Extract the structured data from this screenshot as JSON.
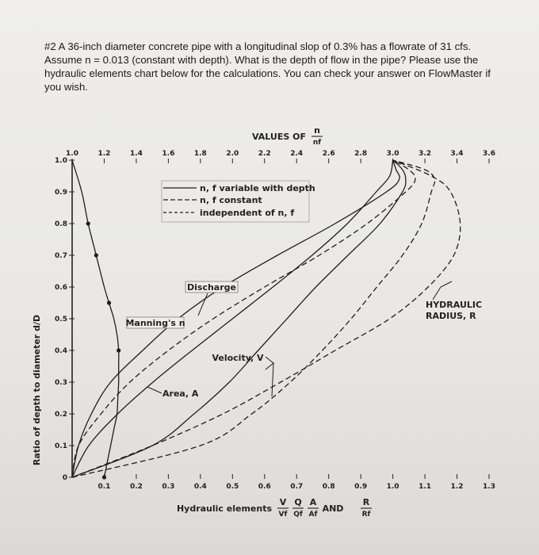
{
  "question": {
    "lines": [
      "#2 A 36-inch diameter concrete pipe with a longitudinal slop of 0.3% has a flowrate of 31 cfs.",
      "Assume n = 0.013 (constant with depth). What is the depth of flow in the pipe? Please use the",
      "hydraulic elements chart below for the calculations. You can check your answer on FlowMaster if",
      "you wish."
    ]
  },
  "chart_data": {
    "type": "line",
    "top_axis": {
      "title": "VALUES OF",
      "title_fraction": {
        "num": "n",
        "den": "nf"
      },
      "ticks": [
        "1.0",
        "1.2",
        "1.4",
        "1.6",
        "1.8",
        "2.0",
        "2.2",
        "2.4",
        "2.6",
        "2.8",
        "3.0",
        "3.2",
        "3.4",
        "3.6"
      ],
      "range": [
        1.0,
        3.6
      ]
    },
    "bottom_axis": {
      "title": "Hydraulic elements",
      "title_fractions": [
        {
          "num": "V",
          "den": "Vf"
        },
        {
          "num": "Q",
          "den": "Qf"
        },
        {
          "num": "A",
          "den": "Af"
        },
        {
          "num": "R",
          "den": "Rf"
        }
      ],
      "title_and": "AND",
      "ticks": [
        "0.1",
        "0.2",
        "0.3",
        "0.4",
        "0.5",
        "0.6",
        "0.7",
        "0.8",
        "0.9",
        "1.0",
        "1.1",
        "1.2",
        "1.3"
      ],
      "range": [
        0,
        1.3
      ]
    },
    "y_axis": {
      "title": "Ratio of depth to diameter d/D",
      "ticks": [
        "0",
        "0.1",
        "0.2",
        "0.3",
        "0.4",
        "0.5",
        "0.6",
        "0.7",
        "0.8",
        "0.9",
        "1.0"
      ],
      "range": [
        0,
        1.0
      ]
    },
    "legend": {
      "position": "top-center",
      "items": [
        {
          "style": "solid",
          "label": "n, f variable with depth"
        },
        {
          "style": "dashed",
          "label": "n, f constant"
        },
        {
          "style": "dashed",
          "label": "independent of n, f"
        }
      ]
    },
    "labels": {
      "discharge": "Discharge",
      "mannings": "Manning's n",
      "velocity": "Velocity, V",
      "area": "Area, A",
      "hydraulic_radius": [
        "HYDRAULIC",
        "RADIUS, R"
      ]
    },
    "series": [
      {
        "name": "Manning's n",
        "axis": "top",
        "style": "solid",
        "points": [
          [
            1.2,
            0.0
          ],
          [
            1.22,
            0.05
          ],
          [
            1.24,
            0.1
          ],
          [
            1.26,
            0.15
          ],
          [
            1.28,
            0.2
          ],
          [
            1.285,
            0.25
          ],
          [
            1.29,
            0.3
          ],
          [
            1.29,
            0.35
          ],
          [
            1.29,
            0.4
          ],
          [
            1.28,
            0.45
          ],
          [
            1.26,
            0.5
          ],
          [
            1.23,
            0.55
          ],
          [
            1.2,
            0.6
          ],
          [
            1.15,
            0.7
          ],
          [
            1.1,
            0.8
          ],
          [
            1.06,
            0.9
          ],
          [
            1.0,
            1.0
          ]
        ]
      },
      {
        "name": "Area, A",
        "axis": "bottom",
        "style": "solid",
        "points": [
          [
            0,
            0
          ],
          [
            0.052,
            0.1
          ],
          [
            0.142,
            0.2
          ],
          [
            0.252,
            0.3
          ],
          [
            0.374,
            0.4
          ],
          [
            0.5,
            0.5
          ],
          [
            0.626,
            0.6
          ],
          [
            0.748,
            0.7
          ],
          [
            0.858,
            0.8
          ],
          [
            0.948,
            0.9
          ],
          [
            0.99,
            0.95
          ],
          [
            1.0,
            1.0
          ]
        ]
      },
      {
        "name": "Velocity, V (n, f variable)",
        "axis": "bottom",
        "style": "solid",
        "points": [
          [
            0,
            0
          ],
          [
            0.25,
            0.1
          ],
          [
            0.38,
            0.2
          ],
          [
            0.49,
            0.3
          ],
          [
            0.58,
            0.4
          ],
          [
            0.67,
            0.5
          ],
          [
            0.76,
            0.6
          ],
          [
            0.86,
            0.7
          ],
          [
            0.96,
            0.8
          ],
          [
            1.03,
            0.9
          ],
          [
            1.04,
            0.94
          ],
          [
            1.03,
            0.97
          ],
          [
            1.0,
            1.0
          ]
        ]
      },
      {
        "name": "Discharge, Q (n, f variable)",
        "axis": "bottom",
        "style": "solid",
        "points": [
          [
            0,
            0
          ],
          [
            0.02,
            0.1
          ],
          [
            0.06,
            0.2
          ],
          [
            0.12,
            0.3
          ],
          [
            0.22,
            0.4
          ],
          [
            0.33,
            0.5
          ],
          [
            0.47,
            0.6
          ],
          [
            0.64,
            0.7
          ],
          [
            0.82,
            0.8
          ],
          [
            0.98,
            0.9
          ],
          [
            1.02,
            0.94
          ],
          [
            1.01,
            0.97
          ],
          [
            1.0,
            1.0
          ]
        ]
      },
      {
        "name": "Velocity, V (n, f constant)",
        "axis": "bottom",
        "style": "dashed",
        "points": [
          [
            0,
            0
          ],
          [
            0.4,
            0.1
          ],
          [
            0.56,
            0.2
          ],
          [
            0.68,
            0.3
          ],
          [
            0.78,
            0.4
          ],
          [
            0.87,
            0.5
          ],
          [
            0.95,
            0.6
          ],
          [
            1.03,
            0.7
          ],
          [
            1.09,
            0.8
          ],
          [
            1.12,
            0.9
          ],
          [
            1.13,
            0.94
          ],
          [
            1.1,
            0.97
          ],
          [
            1.0,
            1.0
          ]
        ]
      },
      {
        "name": "Discharge, Q (n, f constant)",
        "axis": "bottom",
        "style": "dashed",
        "points": [
          [
            0,
            0
          ],
          [
            0.02,
            0.1
          ],
          [
            0.09,
            0.2
          ],
          [
            0.18,
            0.3
          ],
          [
            0.3,
            0.4
          ],
          [
            0.44,
            0.5
          ],
          [
            0.6,
            0.6
          ],
          [
            0.77,
            0.7
          ],
          [
            0.92,
            0.8
          ],
          [
            1.04,
            0.9
          ],
          [
            1.07,
            0.94
          ],
          [
            1.05,
            0.97
          ],
          [
            1.0,
            1.0
          ]
        ]
      },
      {
        "name": "Hydraulic radius, R",
        "axis": "bottom",
        "style": "dashed",
        "points": [
          [
            0,
            0
          ],
          [
            0.25,
            0.1
          ],
          [
            0.47,
            0.2
          ],
          [
            0.65,
            0.3
          ],
          [
            0.82,
            0.4
          ],
          [
            0.99,
            0.5
          ],
          [
            1.11,
            0.6
          ],
          [
            1.19,
            0.7
          ],
          [
            1.21,
            0.8
          ],
          [
            1.18,
            0.9
          ],
          [
            1.12,
            0.95
          ],
          [
            1.0,
            1.0
          ]
        ]
      }
    ],
    "grid": false
  }
}
